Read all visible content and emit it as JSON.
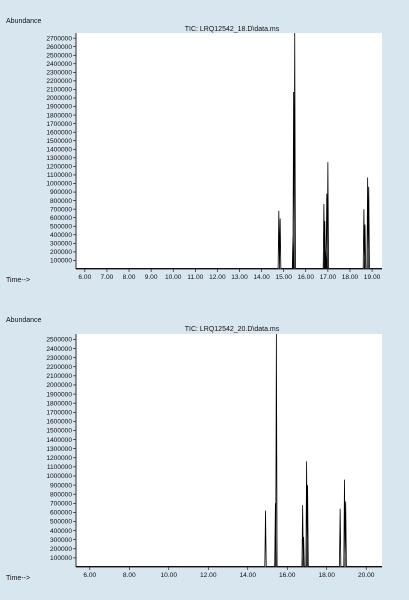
{
  "colors": {
    "background": "#d8e6f0",
    "plot_bg": "#ffffff",
    "trace": "#000000"
  },
  "chart_data": [
    {
      "type": "line",
      "title": "TIC: LRQ12542_18.D\\data.ms",
      "ylabel": "Abundance",
      "xlabel": "Time-->",
      "xlim": [
        5.6,
        19.45
      ],
      "ylim": [
        0,
        2760000
      ],
      "xticks": [
        "6.00",
        "7.00",
        "8.00",
        "9.00",
        "10.00",
        "11.00",
        "12.00",
        "13.00",
        "14.00",
        "15.00",
        "16.00",
        "17.00",
        "18.00",
        "19.00"
      ],
      "yticks": [
        100000,
        200000,
        300000,
        400000,
        500000,
        600000,
        700000,
        800000,
        900000,
        1000000,
        1100000,
        1200000,
        1300000,
        1400000,
        1500000,
        1600000,
        1700000,
        1800000,
        1900000,
        2000000,
        2100000,
        2200000,
        2300000,
        2400000,
        2500000,
        2600000,
        2700000
      ],
      "peaks": [
        {
          "x": 14.78,
          "y": 680000
        },
        {
          "x": 14.84,
          "y": 590000
        },
        {
          "x": 15.5,
          "y": 2760000
        },
        {
          "x": 15.45,
          "y": 2070000
        },
        {
          "x": 15.42,
          "y": 370000
        },
        {
          "x": 16.82,
          "y": 760000
        },
        {
          "x": 16.86,
          "y": 560000
        },
        {
          "x": 16.95,
          "y": 880000
        },
        {
          "x": 17.0,
          "y": 1250000
        },
        {
          "x": 16.92,
          "y": 200000
        },
        {
          "x": 18.63,
          "y": 700000
        },
        {
          "x": 18.68,
          "y": 520000
        },
        {
          "x": 18.8,
          "y": 1070000
        },
        {
          "x": 18.85,
          "y": 960000
        }
      ]
    },
    {
      "type": "line",
      "title": "TIC: LRQ12542_20.D\\data.ms",
      "ylabel": "Abundance",
      "xlabel": "Time-->",
      "xlim": [
        5.3,
        20.8
      ],
      "ylim": [
        0,
        2560000
      ],
      "xticks": [
        "6.00",
        "8.00",
        "10.00",
        "12.00",
        "14.00",
        "16.00",
        "18.00",
        "20.00"
      ],
      "yticks": [
        100000,
        200000,
        300000,
        400000,
        500000,
        600000,
        700000,
        800000,
        900000,
        1000000,
        1100000,
        1200000,
        1300000,
        1400000,
        1500000,
        1600000,
        1700000,
        1800000,
        1900000,
        2000000,
        2100000,
        2200000,
        2300000,
        2400000,
        2500000
      ],
      "peaks": [
        {
          "x": 14.9,
          "y": 620000
        },
        {
          "x": 15.45,
          "y": 2560000
        },
        {
          "x": 15.4,
          "y": 700000
        },
        {
          "x": 16.78,
          "y": 680000
        },
        {
          "x": 16.83,
          "y": 330000
        },
        {
          "x": 16.98,
          "y": 1160000
        },
        {
          "x": 17.03,
          "y": 900000
        },
        {
          "x": 18.68,
          "y": 640000
        },
        {
          "x": 18.9,
          "y": 960000
        },
        {
          "x": 18.96,
          "y": 720000
        }
      ]
    }
  ]
}
